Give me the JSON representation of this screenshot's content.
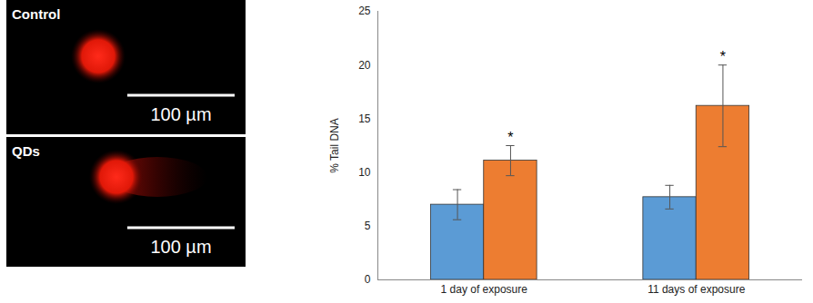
{
  "chart_data": {
    "type": "bar",
    "categories": [
      "1 day of exposure",
      "11 days of exposure"
    ],
    "y_label": "% Tail DNA",
    "series": [
      {
        "color": "#5b9bd5",
        "values": [
          7.0,
          7.7
        ],
        "errors": [
          1.4,
          1.1
        ]
      },
      {
        "color": "#ed7d31",
        "values": [
          11.1,
          16.2
        ],
        "errors": [
          1.4,
          3.8
        ],
        "annotations": [
          "*",
          "*"
        ]
      }
    ],
    "ylim": [
      0,
      25
    ],
    "yticks": [
      0,
      5,
      10,
      15,
      20,
      25
    ],
    "grid": false
  },
  "images": [
    {
      "label": "Control",
      "scale_bar": "100 µm"
    },
    {
      "label": "QDs",
      "scale_bar": "100 µm"
    }
  ]
}
